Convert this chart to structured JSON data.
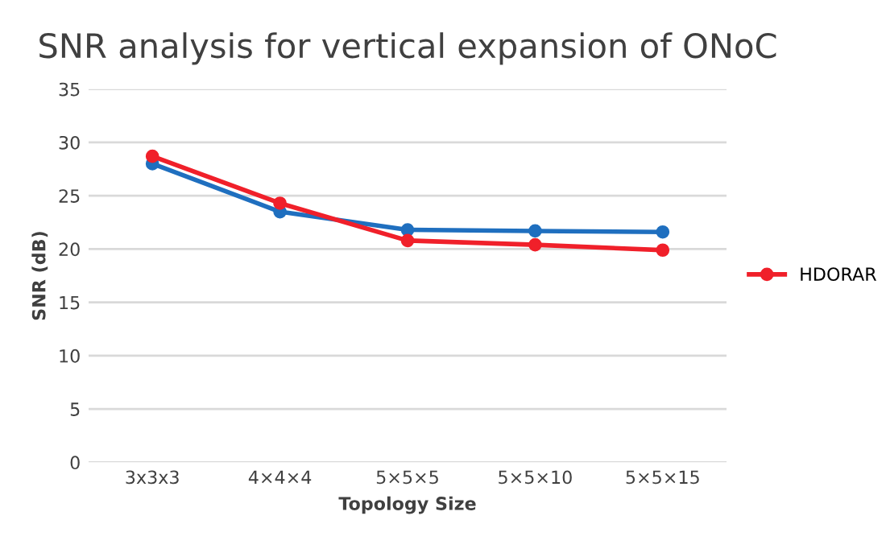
{
  "chart_data": {
    "type": "line",
    "title": "SNR analysis for vertical expansion of ONoC",
    "xlabel": "Topology Size",
    "ylabel": "SNR (dB)",
    "categories": [
      "3x3x3",
      "4×4×4",
      "5×5×5",
      "5×5×10",
      "5×5×15"
    ],
    "series": [
      {
        "color": "#1f6fbf",
        "values": [
          28.0,
          23.5,
          21.8,
          21.7,
          21.6
        ]
      },
      {
        "name": "HDORAR",
        "color": "#f0202a",
        "values": [
          28.7,
          24.3,
          20.8,
          20.4,
          19.9
        ]
      }
    ],
    "ylim": [
      0,
      35
    ],
    "yticks": [
      0,
      5,
      10,
      15,
      20,
      25,
      30,
      35
    ],
    "grid": "y",
    "legend": "right",
    "marker": "circle",
    "line_style": "solid"
  }
}
